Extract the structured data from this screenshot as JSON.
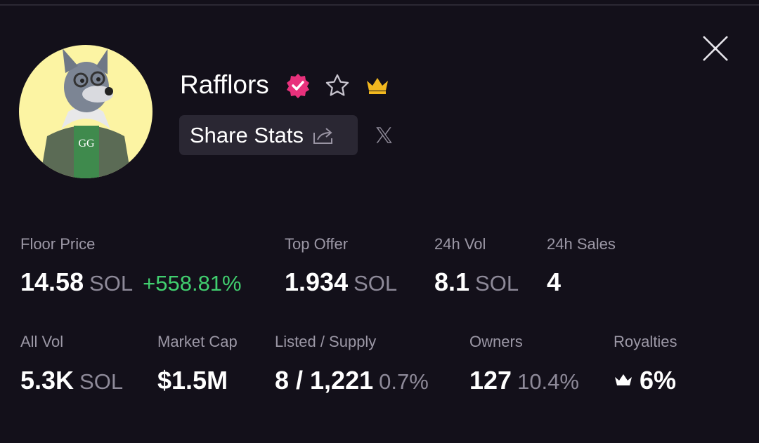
{
  "header": {
    "name": "Rafflors",
    "share_button": "Share Stats"
  },
  "stats": [
    {
      "label": "Floor Price",
      "value": "14.58",
      "unit": "SOL",
      "change": "+558.81%"
    },
    {
      "label": "Top Offer",
      "value": "1.934",
      "unit": "SOL"
    },
    {
      "label": "24h Vol",
      "value": "8.1",
      "unit": "SOL"
    },
    {
      "label": "24h Sales",
      "value": "4"
    },
    {
      "label": "All Vol",
      "value": "5.3K",
      "unit": "SOL"
    },
    {
      "label": "Market Cap",
      "value": "$1.5M"
    },
    {
      "label": "Listed / Supply",
      "value": "8 / 1,221",
      "unit": "0.7%"
    },
    {
      "label": "Owners",
      "value": "127",
      "unit": "10.4%"
    },
    {
      "label": "Royalties",
      "value": "6%"
    }
  ]
}
